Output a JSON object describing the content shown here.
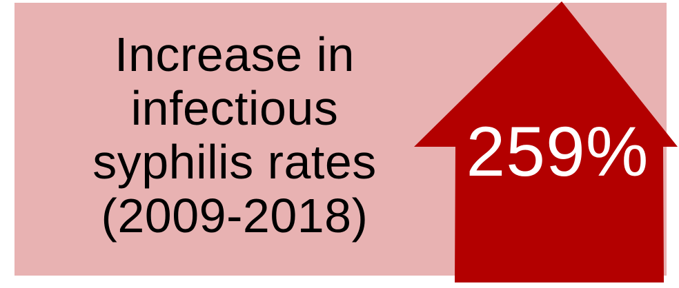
{
  "headline": {
    "lines": [
      "Increase in",
      "infectious",
      "syphilis rates",
      "(2009-2018)"
    ]
  },
  "stat": {
    "value": "259%"
  },
  "colors": {
    "panel": "#e8b2b2",
    "arrow": "#b30000",
    "stat_text": "#ffffff",
    "caption_text": "#000000"
  },
  "icons": {
    "arrow": "up-arrow-icon"
  }
}
